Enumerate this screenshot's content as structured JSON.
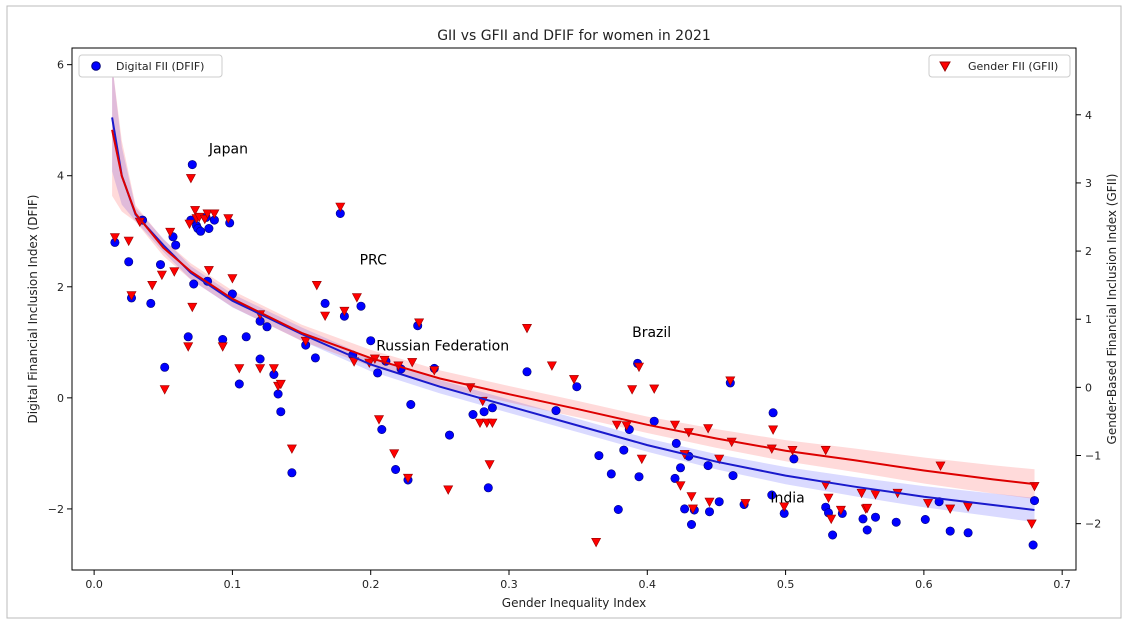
{
  "chart_data": {
    "type": "scatter",
    "title": "GII vs GFII and DFIF for women in 2021",
    "xlabel": "Gender Inequality Index",
    "ylabel_left": "Digital Financial Inclusion Index (DFIF)",
    "ylabel_right": "Gender-Based Financial Inclusion Index (GFII)",
    "xlim": [
      -0.016,
      0.71
    ],
    "ylim_left": [
      -3.1,
      6.3
    ],
    "ylim_right": [
      -2.68,
      4.98
    ],
    "xticks": [
      "0.0",
      "0.1",
      "0.2",
      "0.3",
      "0.4",
      "0.5",
      "0.6",
      "0.7"
    ],
    "yticks_left": [
      "−2",
      "0",
      "2",
      "4",
      "6"
    ],
    "yticks_right": [
      "−2",
      "−1",
      "0",
      "1",
      "2",
      "3",
      "4"
    ],
    "legend_left": "Digital FII (DFIF)",
    "legend_right": "Gender FII (GFII)",
    "colors": {
      "dfif": "#0000ff",
      "gfii": "#ff0000",
      "dfif_fit": "#1a1acc",
      "gfii_fit": "#dd0000"
    },
    "annotations": [
      {
        "text": "Japan",
        "x": 0.083,
        "y": 4.4
      },
      {
        "text": "PRC",
        "x": 0.192,
        "y": 2.4
      },
      {
        "text": "Russian Federation",
        "x": 0.204,
        "y": 0.85
      },
      {
        "text": "Brazil",
        "x": 0.389,
        "y": 1.1
      },
      {
        "text": "India",
        "x": 0.489,
        "y": -1.88
      }
    ],
    "fit_dfif": {
      "points": [
        [
          0.013,
          5.05
        ],
        [
          0.02,
          4.0
        ],
        [
          0.03,
          3.3
        ],
        [
          0.05,
          2.75
        ],
        [
          0.07,
          2.25
        ],
        [
          0.1,
          1.75
        ],
        [
          0.15,
          1.15
        ],
        [
          0.2,
          0.6
        ],
        [
          0.25,
          0.2
        ],
        [
          0.3,
          -0.15
        ],
        [
          0.35,
          -0.5
        ],
        [
          0.4,
          -0.85
        ],
        [
          0.45,
          -1.15
        ],
        [
          0.5,
          -1.4
        ],
        [
          0.55,
          -1.6
        ],
        [
          0.6,
          -1.78
        ],
        [
          0.65,
          -1.93
        ],
        [
          0.68,
          -2.02
        ]
      ]
    },
    "fit_gfii": {
      "points": [
        [
          0.013,
          3.78
        ],
        [
          0.02,
          3.1
        ],
        [
          0.03,
          2.55
        ],
        [
          0.05,
          2.05
        ],
        [
          0.07,
          1.7
        ],
        [
          0.1,
          1.3
        ],
        [
          0.15,
          0.8
        ],
        [
          0.2,
          0.43
        ],
        [
          0.25,
          0.13
        ],
        [
          0.3,
          -0.1
        ],
        [
          0.35,
          -0.32
        ],
        [
          0.4,
          -0.55
        ],
        [
          0.45,
          -0.75
        ],
        [
          0.5,
          -0.93
        ],
        [
          0.55,
          -1.07
        ],
        [
          0.6,
          -1.22
        ],
        [
          0.65,
          -1.35
        ],
        [
          0.68,
          -1.42
        ]
      ]
    },
    "series": [
      {
        "name": "Digital FII (DFIF)",
        "marker": "circle",
        "points": [
          [
            0.015,
            2.8
          ],
          [
            0.025,
            2.45
          ],
          [
            0.027,
            1.8
          ],
          [
            0.035,
            3.2
          ],
          [
            0.041,
            1.7
          ],
          [
            0.048,
            2.4
          ],
          [
            0.051,
            0.55
          ],
          [
            0.057,
            2.9
          ],
          [
            0.059,
            2.75
          ],
          [
            0.07,
            3.2
          ],
          [
            0.071,
            4.2
          ],
          [
            0.074,
            3.1
          ],
          [
            0.075,
            3.05
          ],
          [
            0.077,
            3.0
          ],
          [
            0.081,
            3.25
          ],
          [
            0.083,
            3.05
          ],
          [
            0.087,
            3.2
          ],
          [
            0.098,
            3.15
          ],
          [
            0.068,
            1.1
          ],
          [
            0.072,
            2.05
          ],
          [
            0.082,
            2.1
          ],
          [
            0.093,
            1.05
          ],
          [
            0.1,
            1.87
          ],
          [
            0.105,
            0.25
          ],
          [
            0.11,
            1.1
          ],
          [
            0.12,
            0.7
          ],
          [
            0.12,
            1.38
          ],
          [
            0.125,
            1.28
          ],
          [
            0.13,
            0.42
          ],
          [
            0.133,
            0.07
          ],
          [
            0.135,
            -0.25
          ],
          [
            0.143,
            -1.35
          ],
          [
            0.153,
            0.95
          ],
          [
            0.16,
            0.72
          ],
          [
            0.167,
            1.7
          ],
          [
            0.178,
            3.32
          ],
          [
            0.181,
            1.47
          ],
          [
            0.187,
            0.77
          ],
          [
            0.193,
            1.65
          ],
          [
            0.2,
            1.03
          ],
          [
            0.205,
            0.45
          ],
          [
            0.208,
            -0.57
          ],
          [
            0.211,
            0.66
          ],
          [
            0.218,
            -1.29
          ],
          [
            0.222,
            0.52
          ],
          [
            0.227,
            -1.48
          ],
          [
            0.229,
            -0.12
          ],
          [
            0.234,
            1.3
          ],
          [
            0.246,
            0.53
          ],
          [
            0.257,
            -0.67
          ],
          [
            0.274,
            -0.3
          ],
          [
            0.282,
            -0.25
          ],
          [
            0.285,
            -1.62
          ],
          [
            0.288,
            -0.18
          ],
          [
            0.313,
            0.47
          ],
          [
            0.334,
            -0.23
          ],
          [
            0.349,
            0.2
          ],
          [
            0.365,
            -1.04
          ],
          [
            0.374,
            -1.37
          ],
          [
            0.379,
            -2.01
          ],
          [
            0.383,
            -0.94
          ],
          [
            0.387,
            -0.57
          ],
          [
            0.393,
            0.62
          ],
          [
            0.394,
            -1.42
          ],
          [
            0.405,
            -0.42
          ],
          [
            0.42,
            -1.45
          ],
          [
            0.421,
            -0.82
          ],
          [
            0.424,
            -1.26
          ],
          [
            0.427,
            -2.0
          ],
          [
            0.43,
            -1.05
          ],
          [
            0.432,
            -2.28
          ],
          [
            0.434,
            -2.02
          ],
          [
            0.444,
            -1.22
          ],
          [
            0.445,
            -2.05
          ],
          [
            0.452,
            -1.87
          ],
          [
            0.46,
            0.27
          ],
          [
            0.462,
            -1.4
          ],
          [
            0.47,
            -1.92
          ],
          [
            0.49,
            -1.75
          ],
          [
            0.491,
            -0.27
          ],
          [
            0.499,
            -2.08
          ],
          [
            0.506,
            -1.1
          ],
          [
            0.529,
            -1.97
          ],
          [
            0.531,
            -2.07
          ],
          [
            0.534,
            -2.47
          ],
          [
            0.541,
            -2.08
          ],
          [
            0.556,
            -2.18
          ],
          [
            0.559,
            -2.38
          ],
          [
            0.565,
            -2.15
          ],
          [
            0.58,
            -2.24
          ],
          [
            0.601,
            -2.19
          ],
          [
            0.611,
            -1.87
          ],
          [
            0.619,
            -2.4
          ],
          [
            0.632,
            -2.43
          ],
          [
            0.679,
            -2.65
          ],
          [
            0.68,
            -1.85
          ]
        ]
      },
      {
        "name": "Gender FII (GFII)",
        "marker": "triangle-down",
        "points": [
          [
            0.015,
            2.2
          ],
          [
            0.025,
            2.15
          ],
          [
            0.027,
            1.35
          ],
          [
            0.033,
            2.43
          ],
          [
            0.042,
            1.5
          ],
          [
            0.049,
            1.65
          ],
          [
            0.051,
            -0.03
          ],
          [
            0.055,
            2.28
          ],
          [
            0.058,
            1.7
          ],
          [
            0.068,
            0.6
          ],
          [
            0.069,
            2.4
          ],
          [
            0.07,
            3.07
          ],
          [
            0.071,
            1.18
          ],
          [
            0.073,
            2.6
          ],
          [
            0.074,
            2.48
          ],
          [
            0.076,
            2.5
          ],
          [
            0.08,
            2.47
          ],
          [
            0.082,
            2.55
          ],
          [
            0.083,
            1.72
          ],
          [
            0.087,
            2.55
          ],
          [
            0.093,
            0.6
          ],
          [
            0.097,
            2.48
          ],
          [
            0.1,
            1.6
          ],
          [
            0.105,
            0.28
          ],
          [
            0.12,
            1.07
          ],
          [
            0.12,
            0.28
          ],
          [
            0.13,
            0.28
          ],
          [
            0.133,
            0.02
          ],
          [
            0.135,
            0.05
          ],
          [
            0.143,
            -0.9
          ],
          [
            0.153,
            0.68
          ],
          [
            0.161,
            1.5
          ],
          [
            0.167,
            1.05
          ],
          [
            0.178,
            2.65
          ],
          [
            0.181,
            1.12
          ],
          [
            0.188,
            0.38
          ],
          [
            0.19,
            1.32
          ],
          [
            0.199,
            0.36
          ],
          [
            0.203,
            0.42
          ],
          [
            0.206,
            -0.47
          ],
          [
            0.21,
            0.4
          ],
          [
            0.217,
            -0.97
          ],
          [
            0.22,
            0.32
          ],
          [
            0.227,
            -1.33
          ],
          [
            0.23,
            0.37
          ],
          [
            0.235,
            0.95
          ],
          [
            0.246,
            0.25
          ],
          [
            0.256,
            -1.5
          ],
          [
            0.272,
            0.0
          ],
          [
            0.279,
            -0.52
          ],
          [
            0.281,
            -0.2
          ],
          [
            0.284,
            -0.52
          ],
          [
            0.286,
            -1.13
          ],
          [
            0.288,
            -0.52
          ],
          [
            0.313,
            0.87
          ],
          [
            0.331,
            0.32
          ],
          [
            0.347,
            0.12
          ],
          [
            0.363,
            -2.27
          ],
          [
            0.378,
            -0.55
          ],
          [
            0.385,
            -0.56
          ],
          [
            0.389,
            -0.03
          ],
          [
            0.394,
            0.3
          ],
          [
            0.396,
            -1.05
          ],
          [
            0.405,
            -0.02
          ],
          [
            0.42,
            -0.55
          ],
          [
            0.424,
            -1.44
          ],
          [
            0.427,
            -0.98
          ],
          [
            0.43,
            -0.66
          ],
          [
            0.432,
            -1.6
          ],
          [
            0.433,
            -1.78
          ],
          [
            0.444,
            -0.6
          ],
          [
            0.445,
            -1.68
          ],
          [
            0.452,
            -1.05
          ],
          [
            0.46,
            0.1
          ],
          [
            0.461,
            -0.8
          ],
          [
            0.471,
            -1.7
          ],
          [
            0.49,
            -0.9
          ],
          [
            0.491,
            -0.62
          ],
          [
            0.499,
            -1.75
          ],
          [
            0.505,
            -0.92
          ],
          [
            0.529,
            -1.43
          ],
          [
            0.529,
            -0.92
          ],
          [
            0.531,
            -1.62
          ],
          [
            0.533,
            -1.93
          ],
          [
            0.54,
            -1.8
          ],
          [
            0.555,
            -1.55
          ],
          [
            0.558,
            -1.78
          ],
          [
            0.559,
            -1.77
          ],
          [
            0.565,
            -1.57
          ],
          [
            0.581,
            -1.55
          ],
          [
            0.603,
            -1.7
          ],
          [
            0.612,
            -1.15
          ],
          [
            0.619,
            -1.78
          ],
          [
            0.632,
            -1.75
          ],
          [
            0.678,
            -2.0
          ],
          [
            0.68,
            -1.45
          ]
        ]
      }
    ]
  }
}
